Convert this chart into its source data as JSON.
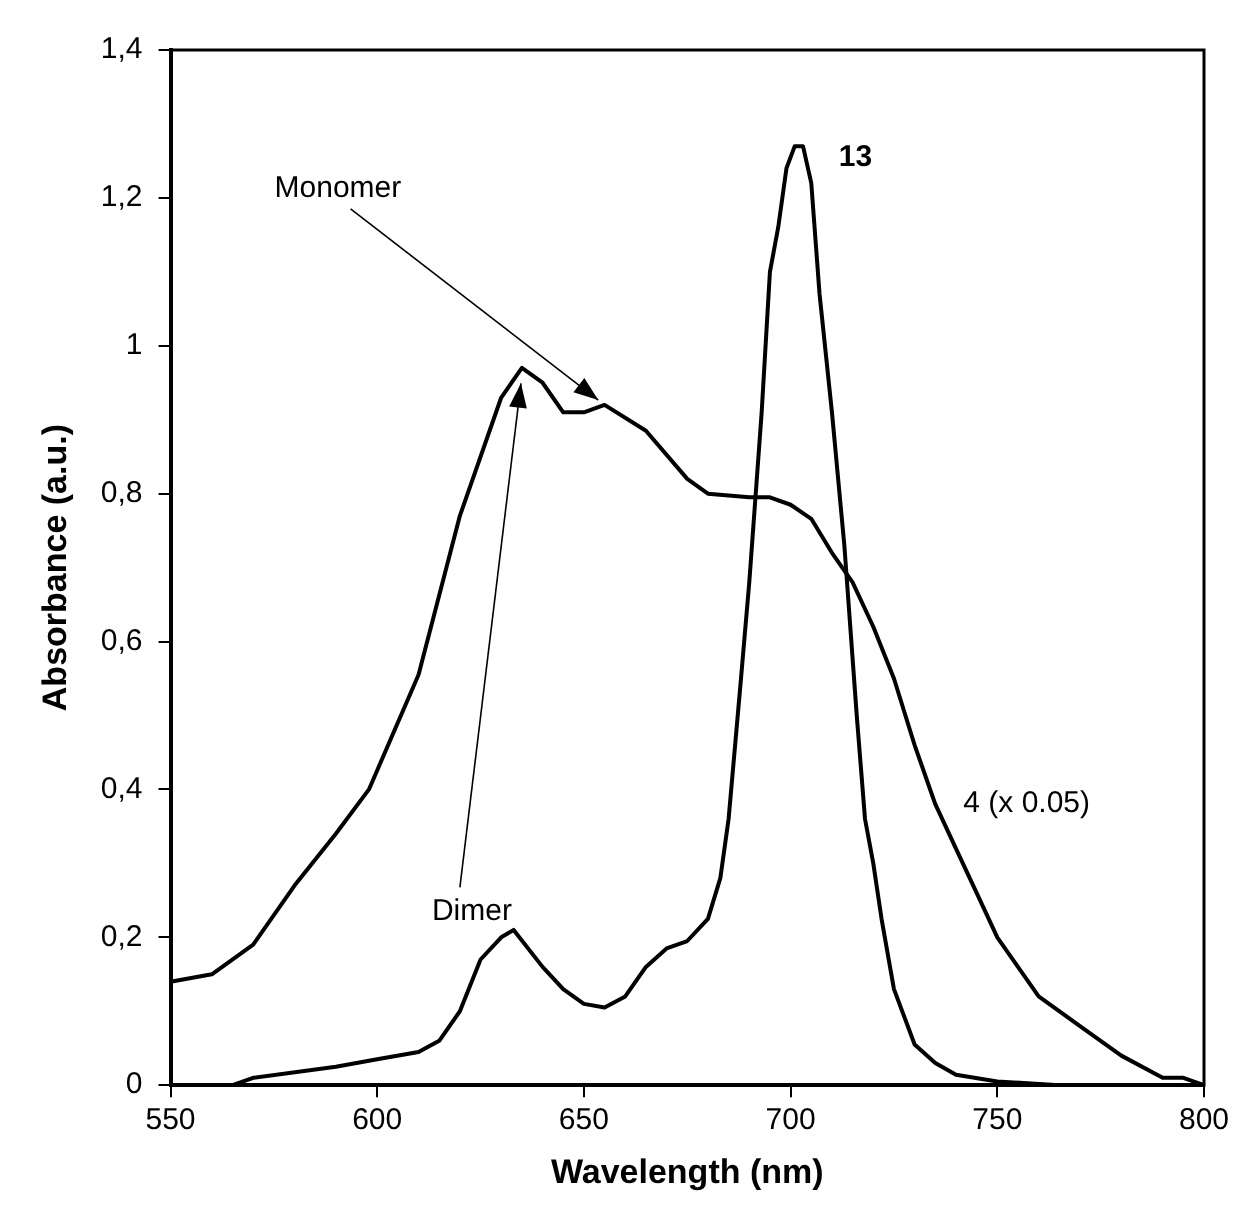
{
  "chart_data": {
    "type": "line",
    "xlabel": "Wavelength (nm)",
    "ylabel": "Absorbance (a.u.)",
    "xlim": [
      550,
      800
    ],
    "xticks": [
      550,
      600,
      650,
      700,
      750,
      800
    ],
    "ylim": [
      0,
      1.4
    ],
    "yticks": [
      0,
      {
        "value": 0.2,
        "label": "0,2"
      },
      {
        "value": 0.4,
        "label": "0,4"
      },
      {
        "value": 0.6,
        "label": "0,6"
      },
      {
        "value": 0.8,
        "label": "0,8"
      },
      1,
      {
        "value": 1.2,
        "label": "1,2"
      },
      {
        "value": 1.4,
        "label": "1,4"
      }
    ],
    "grid": false,
    "legend": false,
    "marker": "none",
    "line_style": "solid",
    "series": [
      {
        "name": "4 (x 0.05)",
        "color": "#000000",
        "x": [
          550,
          560,
          570,
          580,
          590,
          598,
          610,
          620,
          630,
          635,
          640,
          645,
          650,
          655,
          665,
          675,
          680,
          690,
          695,
          700,
          705,
          710,
          715,
          720,
          725,
          730,
          735,
          740,
          745,
          750,
          755,
          760,
          770,
          780,
          790,
          795,
          800
        ],
        "values": [
          0.14,
          0.15,
          0.19,
          0.27,
          0.34,
          0.4,
          0.555,
          0.77,
          0.93,
          0.97,
          0.95,
          0.91,
          0.91,
          0.92,
          0.885,
          0.82,
          0.8,
          0.795,
          0.795,
          0.785,
          0.766,
          0.72,
          0.68,
          0.62,
          0.55,
          0.46,
          0.38,
          0.32,
          0.26,
          0.2,
          0.16,
          0.12,
          0.08,
          0.04,
          0.01,
          0.01,
          0
        ]
      },
      {
        "name": "13",
        "color": "#000000",
        "x": [
          550,
          565,
          570,
          590,
          600,
          610,
          615,
          620,
          625,
          630,
          633,
          640,
          645,
          650,
          655,
          660,
          665,
          670,
          675,
          680,
          683,
          685,
          688,
          690,
          693,
          695,
          697,
          699,
          701,
          703,
          705,
          707,
          710,
          713,
          716,
          718,
          720,
          722,
          725,
          730,
          735,
          740,
          750,
          765
        ],
        "values": [
          0,
          0,
          0.01,
          0.025,
          0.035,
          0.045,
          0.06,
          0.1,
          0.17,
          0.2,
          0.21,
          0.16,
          0.13,
          0.11,
          0.105,
          0.12,
          0.16,
          0.185,
          0.195,
          0.225,
          0.28,
          0.36,
          0.55,
          0.68,
          0.91,
          1.1,
          1.16,
          1.24,
          1.27,
          1.27,
          1.22,
          1.07,
          0.91,
          0.73,
          0.5,
          0.36,
          0.3,
          0.225,
          0.13,
          0.055,
          0.03,
          0.014,
          0.005,
          0
        ]
      }
    ],
    "annotations": [
      {
        "text": "Monomer",
        "x": 655,
        "y": 0.92
      },
      {
        "text": "Dimer",
        "x": 635,
        "y": 0.96
      }
    ]
  }
}
